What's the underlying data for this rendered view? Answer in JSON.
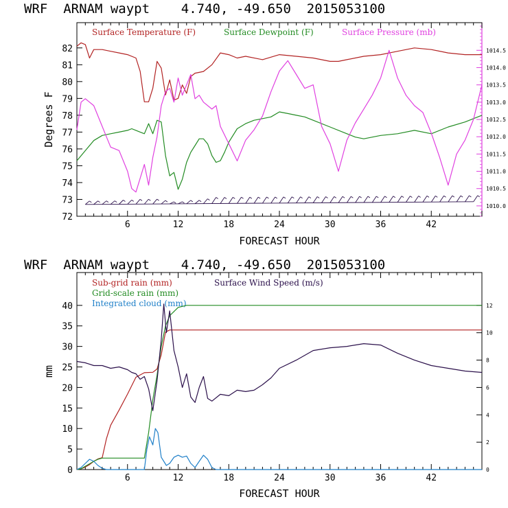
{
  "colors": {
    "temperature": "#b22222",
    "dewpoint": "#228b22",
    "pressure": "#e040e0",
    "subgrid": "#b22222",
    "gridscale": "#228b22",
    "cloud": "#1e7fc8",
    "wind": "#2a0f4a",
    "barbs": "#2a0f4a",
    "frame": "#000000",
    "right_axis_top": "#e040e0"
  },
  "chart_data": [
    {
      "type": "line",
      "header": "WRF  ARNAM waypt    4.740, -49.650  2015053100",
      "xlabel": "FORECAST HOUR",
      "ylabel": "Degrees F",
      "xlim": [
        0,
        48
      ],
      "ylim": [
        72,
        83.5
      ],
      "y2lim": [
        1009.7,
        1015.3
      ],
      "xticks": [
        6,
        12,
        18,
        24,
        30,
        36,
        42
      ],
      "yticks": [
        72,
        73,
        74,
        75,
        76,
        77,
        78,
        79,
        80,
        81,
        82
      ],
      "y2ticks": [
        "1010.0",
        "1010.5",
        "1011.0",
        "1011.5",
        "1012.0",
        "1012.5",
        "1013.0",
        "1013.5",
        "1014.0",
        "1014.5"
      ],
      "y2tick_values": [
        1010.0,
        1010.5,
        1011.0,
        1011.5,
        1012.0,
        1012.5,
        1013.0,
        1013.5,
        1014.0,
        1014.5
      ],
      "legend_loc": "top",
      "series": [
        {
          "name": "Surface Temperature (F)",
          "axis": "left",
          "color_key": "temperature",
          "x": [
            0,
            0.5,
            1,
            1.5,
            2,
            3,
            4,
            5,
            6,
            7,
            7.5,
            8,
            8.5,
            9,
            9.5,
            10,
            10.5,
            11,
            11.5,
            12,
            12.5,
            13,
            13.5,
            14,
            15,
            16,
            17,
            18,
            19,
            20,
            22,
            24,
            26,
            28,
            30,
            31,
            32,
            34,
            36,
            38,
            40,
            42,
            44,
            46,
            48
          ],
          "y": [
            82.1,
            82.3,
            82.2,
            81.4,
            81.9,
            81.9,
            81.8,
            81.7,
            81.6,
            81.4,
            80.6,
            78.8,
            78.8,
            79.6,
            81.2,
            80.8,
            79.2,
            80.1,
            78.9,
            79.0,
            79.8,
            79.3,
            80.3,
            80.5,
            80.6,
            81.0,
            81.7,
            81.6,
            81.4,
            81.5,
            81.3,
            81.6,
            81.5,
            81.4,
            81.2,
            81.2,
            81.3,
            81.5,
            81.6,
            81.8,
            82.0,
            81.9,
            81.7,
            81.6,
            81.6
          ]
        },
        {
          "name": "Surface Dewpoint (F)",
          "axis": "left",
          "color_key": "dewpoint",
          "x": [
            0,
            1,
            2,
            3,
            4,
            5,
            6,
            6.5,
            7,
            7.5,
            8,
            8.5,
            9,
            9.5,
            10,
            10.5,
            11,
            11.5,
            12,
            12.5,
            13,
            13.5,
            14,
            14.5,
            15,
            15.5,
            16,
            16.5,
            17,
            17.5,
            18,
            19,
            20,
            21,
            22,
            23,
            24,
            25,
            26,
            27,
            28,
            30,
            32,
            33,
            34,
            36,
            38,
            40,
            42,
            44,
            46,
            48
          ],
          "y": [
            75.3,
            75.9,
            76.5,
            76.8,
            76.9,
            77.0,
            77.1,
            77.2,
            77.1,
            77.0,
            76.9,
            77.5,
            76.9,
            77.7,
            77.6,
            75.6,
            74.4,
            74.6,
            73.6,
            74.2,
            75.2,
            75.8,
            76.2,
            76.6,
            76.6,
            76.3,
            75.6,
            75.2,
            75.3,
            75.8,
            76.4,
            77.2,
            77.5,
            77.7,
            77.8,
            77.9,
            78.2,
            78.1,
            78.0,
            77.9,
            77.7,
            77.3,
            76.9,
            76.7,
            76.6,
            76.8,
            76.9,
            77.1,
            76.9,
            77.3,
            77.6,
            78.0
          ]
        },
        {
          "name": "Surface Pressure (mb)",
          "axis": "right",
          "color_key": "pressure",
          "x": [
            0,
            0.5,
            1,
            2,
            3,
            3.5,
            4,
            5,
            6,
            6.5,
            7,
            7.5,
            8,
            8.5,
            9,
            9.5,
            10,
            10.5,
            11,
            11.5,
            12,
            12.5,
            13,
            13.5,
            14,
            14.5,
            15,
            16,
            16.5,
            17,
            18,
            19,
            20,
            21,
            22,
            23,
            24,
            25,
            26,
            27,
            28,
            29,
            30,
            31,
            32,
            33,
            34,
            35,
            36,
            37,
            38,
            39,
            40,
            41,
            42,
            43,
            44,
            45,
            46,
            47,
            48
          ],
          "y": [
            1012.2,
            1013.0,
            1013.1,
            1012.9,
            1012.3,
            1012.0,
            1011.7,
            1011.6,
            1011.0,
            1010.5,
            1010.4,
            1010.8,
            1011.2,
            1010.6,
            1011.4,
            1012.0,
            1012.9,
            1013.3,
            1013.4,
            1013.0,
            1013.7,
            1013.2,
            1013.5,
            1013.8,
            1013.1,
            1013.2,
            1013.0,
            1012.8,
            1012.9,
            1012.3,
            1011.8,
            1011.3,
            1011.9,
            1012.2,
            1012.6,
            1013.3,
            1013.9,
            1014.2,
            1013.8,
            1013.4,
            1013.5,
            1012.3,
            1011.8,
            1011.0,
            1011.9,
            1012.4,
            1012.8,
            1013.2,
            1013.7,
            1014.5,
            1013.7,
            1013.2,
            1012.9,
            1012.7,
            1012.1,
            1011.4,
            1010.6,
            1011.5,
            1011.9,
            1012.5,
            1013.5
          ]
        }
      ],
      "wind_barbs": {
        "y_value": 72.7,
        "x": [
          1,
          2,
          3,
          4,
          5,
          6,
          7,
          8,
          9,
          10,
          11,
          12,
          13,
          14,
          15,
          16,
          17,
          18,
          19,
          20,
          21,
          22,
          23,
          24,
          25,
          26,
          27,
          28,
          29,
          30,
          31,
          32,
          33,
          34,
          35,
          36,
          37,
          38,
          39,
          40,
          41,
          42,
          43,
          44,
          45,
          46,
          47
        ],
        "heights": [
          0,
          0,
          0,
          0,
          0.05,
          0.05,
          0.1,
          0.1,
          0.1,
          0,
          -0.1,
          -0.1,
          0,
          0,
          0.1,
          0.2,
          0.2,
          0.2,
          0.2,
          0.2,
          0.2,
          0.2,
          0.2,
          0.2,
          0.2,
          0.2,
          0.2,
          0.2,
          0.2,
          0.2,
          0.2,
          0.2,
          0.2,
          0.2,
          0.2,
          0.2,
          0.2,
          0.2,
          0.2,
          0.2,
          0.2,
          0.2,
          0.2,
          0.2,
          0.2,
          0.2,
          0.2
        ]
      }
    },
    {
      "type": "line",
      "header": "WRF  ARNAM waypt    4.740, -49.650  2015053100",
      "xlabel": "FORECAST HOUR",
      "ylabel": "mm",
      "xlim": [
        0,
        48
      ],
      "ylim": [
        0,
        48
      ],
      "y2lim": [
        0,
        14.4
      ],
      "xticks": [
        6,
        12,
        18,
        24,
        30,
        36,
        42
      ],
      "yticks": [
        0,
        5,
        10,
        15,
        20,
        25,
        30,
        35,
        40
      ],
      "y2ticks": [
        "0",
        "2",
        "4",
        "6",
        "8",
        "10",
        "12"
      ],
      "y2tick_values": [
        0,
        2,
        4,
        6,
        8,
        10,
        12
      ],
      "legend_loc": "top-left",
      "series": [
        {
          "name": "Sub-grid rain (mm)",
          "axis": "left",
          "color_key": "subgrid",
          "x": [
            0,
            0.5,
            1,
            1.5,
            2,
            2.5,
            3,
            3.5,
            4,
            5,
            6,
            7,
            8,
            9,
            9.5,
            10,
            10.5,
            11,
            48
          ],
          "y": [
            0,
            0.2,
            0.6,
            1.2,
            2.0,
            2.6,
            2.9,
            7.5,
            10.8,
            14.5,
            18.4,
            22.5,
            23.6,
            23.7,
            24.5,
            28.0,
            33.5,
            34.0,
            34.0
          ]
        },
        {
          "name": "Grid-scale rain (mm)",
          "axis": "left",
          "color_key": "gridscale",
          "x": [
            0,
            0.5,
            1,
            1.5,
            2,
            2.5,
            3,
            4,
            5,
            6,
            7,
            8,
            8.5,
            9,
            9.5,
            10,
            10.5,
            11,
            11.5,
            12,
            13,
            14,
            48
          ],
          "y": [
            0,
            0.2,
            0.8,
            1.4,
            2.0,
            2.5,
            2.8,
            2.8,
            2.8,
            2.8,
            2.8,
            2.8,
            9.0,
            17.0,
            23.0,
            30.0,
            35.0,
            37.5,
            38.5,
            39.5,
            40.0,
            40.0,
            40.0
          ]
        },
        {
          "name": "Integrated cloud (mm)",
          "axis": "left",
          "color_key": "cloud",
          "x": [
            0,
            0.5,
            1,
            1.5,
            2,
            2.5,
            3,
            3.5,
            4,
            8,
            8.3,
            8.6,
            9,
            9.3,
            9.6,
            10,
            10.3,
            10.6,
            11,
            11.5,
            12,
            12.5,
            13,
            13.5,
            14,
            14.5,
            15,
            15.5,
            16,
            16.5,
            48
          ],
          "y": [
            0,
            0.5,
            1.5,
            2.5,
            2.0,
            1.0,
            0.3,
            0.0,
            0.0,
            0.0,
            5.0,
            8.0,
            6.0,
            10.0,
            9.0,
            3.0,
            2.0,
            1.0,
            1.5,
            3.0,
            3.5,
            3.0,
            3.3,
            1.5,
            0.5,
            2.0,
            3.5,
            2.5,
            0.5,
            0.0,
            0.0
          ]
        },
        {
          "name": "Surface Wind Speed (m/s)",
          "axis": "right",
          "color_key": "wind",
          "x": [
            0,
            1,
            2,
            3,
            4,
            5,
            6,
            6.5,
            7,
            7.5,
            8,
            8.5,
            9,
            9.5,
            10,
            10.3,
            10.6,
            11,
            11.5,
            12,
            12.5,
            13,
            13.5,
            14,
            14.5,
            15,
            15.5,
            16,
            17,
            18,
            19,
            20,
            21,
            22,
            23,
            24,
            26,
            28,
            30,
            32,
            34,
            36,
            38,
            40,
            42,
            44,
            46,
            48
          ],
          "y": [
            7.9,
            7.8,
            7.6,
            7.6,
            7.4,
            7.5,
            7.3,
            7.1,
            7.0,
            6.6,
            6.8,
            5.9,
            4.3,
            6.5,
            9.5,
            12.1,
            10.0,
            11.6,
            8.7,
            7.5,
            6.0,
            7.0,
            5.3,
            4.9,
            6.0,
            6.8,
            5.2,
            5.0,
            5.5,
            5.4,
            5.8,
            5.7,
            5.8,
            6.2,
            6.7,
            7.4,
            8.0,
            8.7,
            8.9,
            9.0,
            9.2,
            9.1,
            8.5,
            8.0,
            7.6,
            7.4,
            7.2,
            7.1
          ]
        }
      ]
    }
  ]
}
